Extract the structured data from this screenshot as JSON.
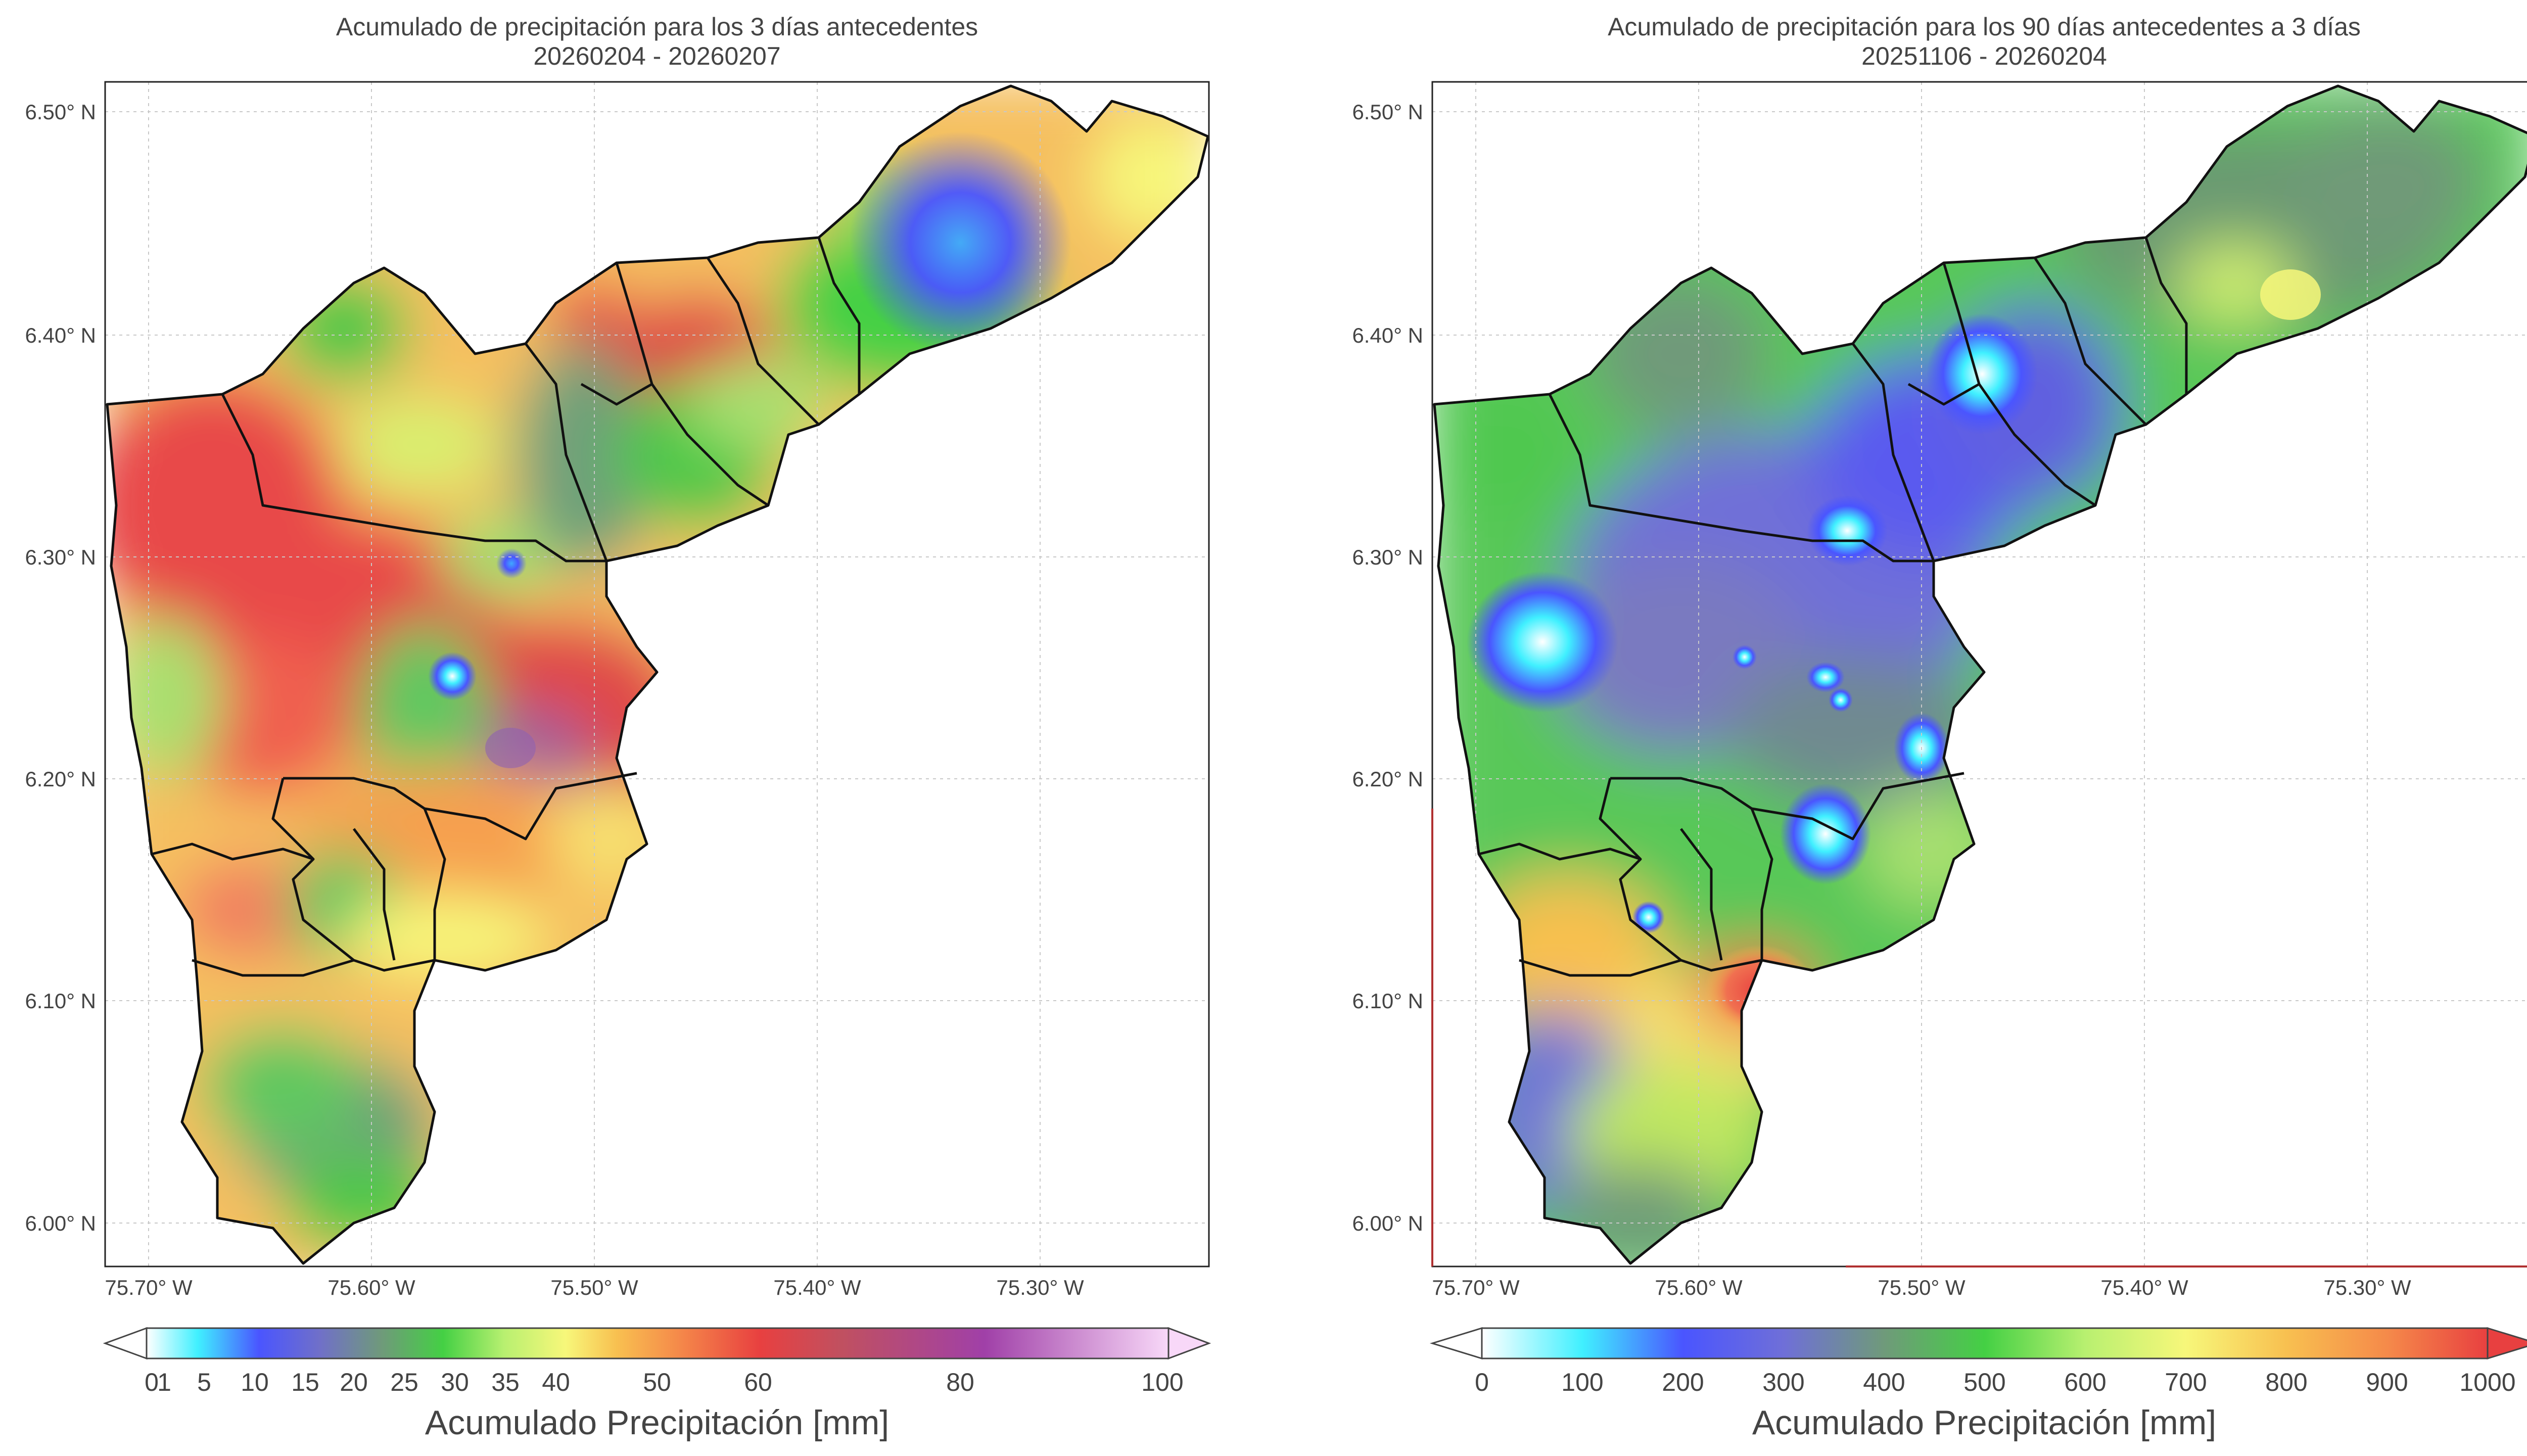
{
  "panels": [
    {
      "title_line1": "Acumulado de precipitación para los 3 días antecedentes",
      "title_line2": "20260204 - 20260207",
      "lat_ticks": [
        "6.50° N",
        "6.40° N",
        "6.30° N",
        "6.20° N",
        "6.10° N",
        "6.00° N"
      ],
      "lon_ticks": [
        "75.70° W",
        "75.60° W",
        "75.50° W",
        "75.40° W",
        "75.30° W"
      ],
      "colorbar": {
        "label": "Acumulado Precipitación [mm]",
        "ticks": [
          "0",
          "1",
          "5",
          "10",
          "15",
          "20",
          "25",
          "30",
          "35",
          "40",
          "50",
          "60",
          "80",
          "100"
        ],
        "colors": [
          "#ffffff",
          "#40f0ff",
          "#4a55ff",
          "#6f6fd8",
          "#6fa07a",
          "#44d044",
          "#a8f06a",
          "#f7f77a",
          "#f8c050",
          "#f58a4a",
          "#e84040",
          "#c04a60",
          "#a04aa0",
          "#f8d8f8"
        ]
      }
    },
    {
      "title_line1": "Acumulado de precipitación para los 90 días antecedentes a 3 días",
      "title_line2": "20251106 - 20260204",
      "lat_ticks": [
        "6.50° N",
        "6.40° N",
        "6.30° N",
        "6.20° N",
        "6.10° N",
        "6.00° N"
      ],
      "lon_ticks": [
        "75.70° W",
        "75.60° W",
        "75.50° W",
        "75.40° W",
        "75.30° W"
      ],
      "colorbar": {
        "label": "Acumulado Precipitación [mm]",
        "ticks": [
          "0",
          "100",
          "200",
          "300",
          "400",
          "500",
          "600",
          "700",
          "800",
          "900",
          "1000"
        ],
        "colors": [
          "#ffffff",
          "#40f0ff",
          "#4a55ff",
          "#6f6fd8",
          "#6f9a7a",
          "#44d044",
          "#a8f06a",
          "#f7f77a",
          "#f8c050",
          "#f58a4a",
          "#e84040"
        ]
      }
    }
  ]
}
